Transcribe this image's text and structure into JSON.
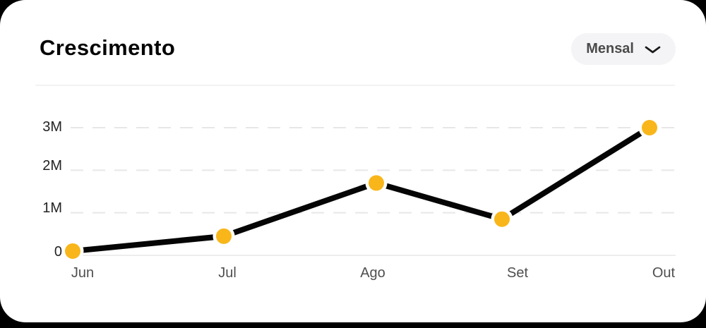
{
  "header": {
    "title": "Crescimento"
  },
  "period_dropdown": {
    "label": "Mensal",
    "icon": "chevron-down-icon"
  },
  "chart_data": {
    "type": "line",
    "title": "Crescimento",
    "categories": [
      "Jun",
      "Jul",
      "Ago",
      "Set",
      "Out"
    ],
    "series": [
      {
        "name": "Crescimento",
        "values": [
          0.1,
          0.45,
          1.7,
          0.85,
          3.0
        ]
      }
    ],
    "unit": "M",
    "xlabel": "",
    "ylabel": "",
    "ylim": [
      0,
      3
    ],
    "ytick_values": [
      0,
      1,
      2,
      3
    ],
    "ytick_labels": [
      "0",
      "1M",
      "2M",
      "3M"
    ],
    "grid": "horizontal-dashed",
    "legend": "none",
    "line_color": "#050505",
    "point_color": "#F8B61A",
    "point_ring_color": "#ffffff"
  },
  "colors": {
    "page_background": "#000000",
    "card_background": "#ffffff",
    "accent_yellow": "#F8B61A",
    "line_black": "#050505",
    "gridline": "#e7e7e7",
    "axis_line": "#ededed",
    "pill_background": "#f4f4f6",
    "pill_text": "#4b4b4b",
    "divider": "#f2f2f2"
  }
}
